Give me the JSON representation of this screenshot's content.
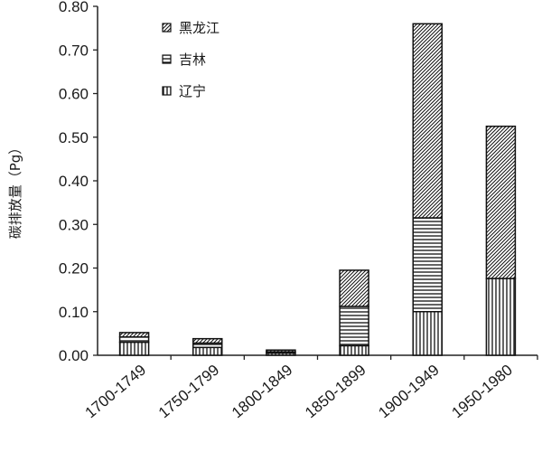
{
  "chart_data": {
    "type": "bar",
    "stacked": true,
    "title": "",
    "xlabel": "",
    "ylabel": "碳排放量（Pg）",
    "ylim": [
      0,
      0.8
    ],
    "yticks": [
      "0.00",
      "0.10",
      "0.20",
      "0.30",
      "0.40",
      "0.50",
      "0.60",
      "0.70",
      "0.80"
    ],
    "categories": [
      "1700-1749",
      "1750-1799",
      "1800-1849",
      "1850-1899",
      "1900-1949",
      "1950-1980"
    ],
    "series": [
      {
        "name": "辽宁",
        "pattern": "vertical-lines",
        "values": [
          0.03,
          0.018,
          0.005,
          0.022,
          0.1,
          0.176
        ]
      },
      {
        "name": "吉林",
        "pattern": "horizontal-lines",
        "values": [
          0.012,
          0.01,
          0.003,
          0.09,
          0.215,
          0.0
        ]
      },
      {
        "name": "黑龙江",
        "pattern": "diagonal-lines",
        "values": [
          0.01,
          0.01,
          0.004,
          0.083,
          0.445,
          0.349
        ]
      }
    ],
    "legend_placement": "top-left",
    "grid": false
  },
  "legend": [
    {
      "label": "黑龙江",
      "pattern": "diagonal-lines"
    },
    {
      "label": "吉林",
      "pattern": "horizontal-lines"
    },
    {
      "label": "辽宁",
      "pattern": "vertical-lines"
    }
  ]
}
